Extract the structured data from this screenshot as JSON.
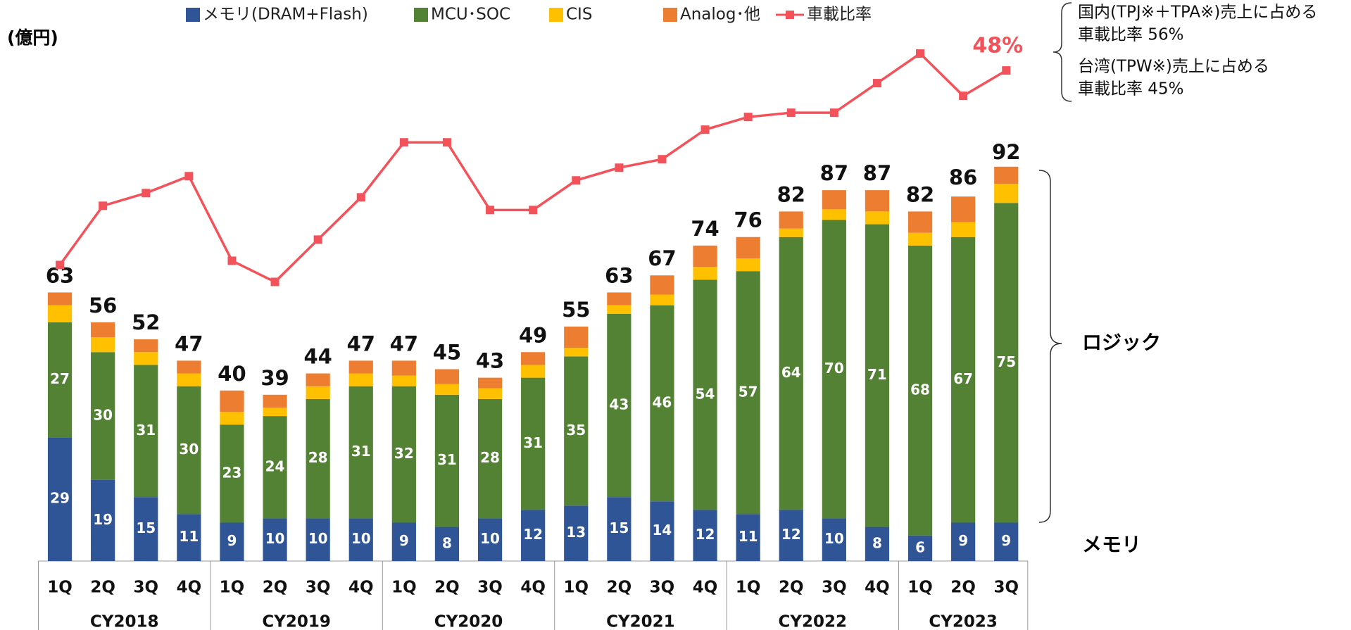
{
  "chart_data": {
    "type": "bar",
    "unit_label": "(億円)",
    "groups": [
      {
        "label": "CY2018",
        "categories": [
          "1Q",
          "2Q",
          "3Q",
          "4Q"
        ]
      },
      {
        "label": "CY2019",
        "categories": [
          "1Q",
          "2Q",
          "3Q",
          "4Q"
        ]
      },
      {
        "label": "CY2020",
        "categories": [
          "1Q",
          "2Q",
          "3Q",
          "4Q"
        ]
      },
      {
        "label": "CY2021",
        "categories": [
          "1Q",
          "2Q",
          "3Q",
          "4Q"
        ]
      },
      {
        "label": "CY2022",
        "categories": [
          "1Q",
          "2Q",
          "3Q",
          "4Q"
        ]
      },
      {
        "label": "CY2023",
        "categories": [
          "1Q",
          "2Q",
          "3Q"
        ]
      }
    ],
    "ylim": [
      0,
      125
    ],
    "y2lim": [
      -10,
      53
    ],
    "series": [
      {
        "name": "メモリ(DRAM+Flash)",
        "color": "#2f5597",
        "labeled": true,
        "values": [
          29,
          19,
          15,
          11,
          9,
          10,
          10,
          10,
          9,
          8,
          10,
          12,
          13,
          15,
          14,
          12,
          11,
          12,
          10,
          8,
          6,
          9,
          9
        ]
      },
      {
        "name": "MCU･SOC",
        "color": "#548235",
        "labeled": true,
        "values": [
          27,
          30,
          31,
          30,
          23,
          24,
          28,
          31,
          32,
          31,
          28,
          31,
          35,
          43,
          46,
          54,
          57,
          64,
          70,
          71,
          68,
          67,
          75
        ]
      },
      {
        "name": "CIS",
        "color": "#ffc000",
        "labeled": false,
        "values": [
          4,
          3.5,
          3,
          3,
          3,
          2,
          3,
          3,
          2.5,
          2.5,
          2.5,
          3,
          2,
          2,
          2.5,
          3,
          3,
          2,
          2.5,
          3,
          3,
          3.5,
          4.5
        ]
      },
      {
        "name": "Analog･他",
        "color": "#ed7d31",
        "labeled": false,
        "values": [
          3,
          3.5,
          3,
          3,
          5,
          3,
          3,
          3,
          3.5,
          3.5,
          2.5,
          3,
          5,
          3,
          4.5,
          5,
          5,
          4,
          4.5,
          5,
          5,
          6,
          4
        ]
      },
      {
        "name": "車載比率",
        "color": "#f4525a",
        "type": "line",
        "axis": "y2",
        "values": [
          25,
          32,
          33.5,
          35.5,
          25.5,
          23,
          28,
          33,
          39.5,
          39.5,
          31.5,
          31.5,
          35,
          36.5,
          37.5,
          41,
          42.5,
          43,
          43,
          46.5,
          50,
          45,
          48
        ],
        "value_labels": [
          null,
          null,
          null,
          null,
          null,
          null,
          null,
          null,
          null,
          null,
          null,
          null,
          null,
          null,
          null,
          null,
          null,
          null,
          null,
          null,
          null,
          null,
          "48%"
        ]
      }
    ],
    "totals": [
      63,
      56,
      52,
      47,
      40,
      39,
      44,
      47,
      47,
      45,
      43,
      49,
      55,
      63,
      67,
      74,
      76,
      82,
      87,
      87,
      82,
      86,
      92
    ],
    "annotations": [
      "国内(TPJ※＋TPA※)売上に占める",
      "車載比率  56%",
      "台湾(TPW※)売上に占める",
      "車載比率  45%"
    ],
    "brace_labels": [
      "ロジック",
      "メモリ"
    ]
  }
}
